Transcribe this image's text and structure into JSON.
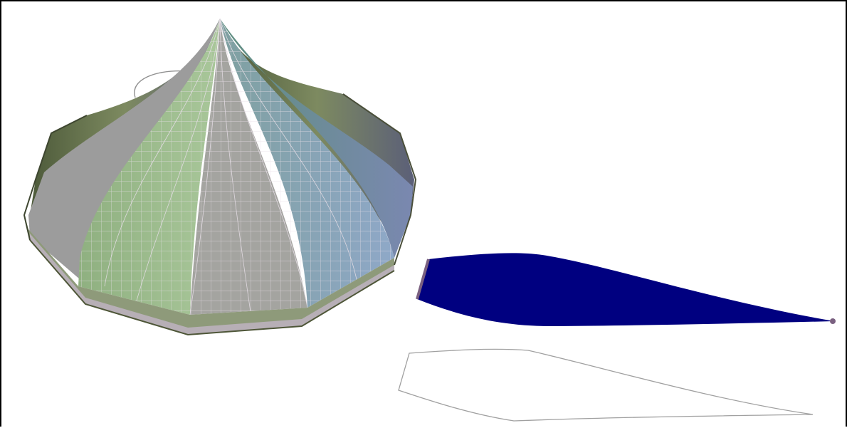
{
  "scene": {
    "background_color": "#ffffff",
    "frame_color": "#000000",
    "objects": [
      {
        "name": "octagonal-dome",
        "kind": "3d surface model"
      },
      {
        "name": "filled-profile",
        "kind": "filled 2d profile"
      },
      {
        "name": "outline-profile",
        "kind": "2d outline"
      }
    ]
  },
  "colors": {
    "dome_green": "#9fbf8f",
    "dome_gray": "#9a9a9a",
    "dome_dark": "#5e6a48",
    "dome_blue": "#8a9fc0",
    "mesh_lines": "#e8dfe8",
    "profile_fill": "#000080",
    "profile_edge": "#7a6080",
    "outline_stroke": "#a0a0a0"
  }
}
